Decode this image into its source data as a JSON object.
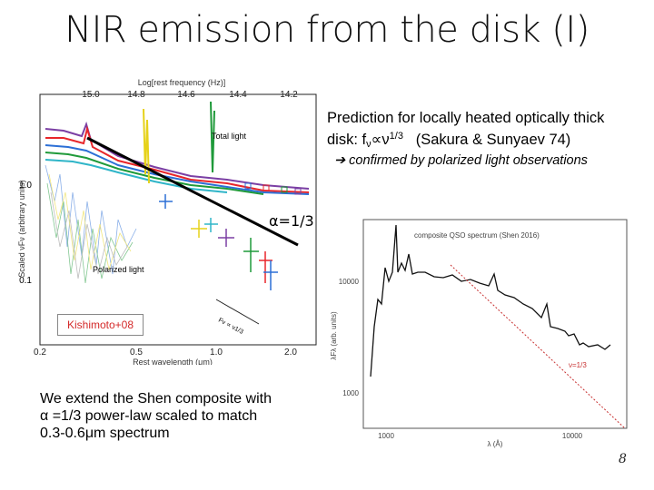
{
  "slide": {
    "title": "NIR emission from the disk (I)",
    "page_number": "8"
  },
  "prediction": {
    "line1": "Prediction for locally heated optically thick",
    "line2_prefix": "disk: f",
    "sub": "ν",
    "middle": "∝ν",
    "sup": "1/3",
    "suffix": "   (Sakura & Sunyaev 74)"
  },
  "confirmation": {
    "arrow": "➔",
    "text": " confirmed by polarized light observations"
  },
  "alpha_label": "α=1/3",
  "kishimoto_label": "Kishimoto+08",
  "extend_text": {
    "line1": "We extend the Shen composite with",
    "line2": "α =1/3 power-law scaled to match",
    "line3": "0.3-0.6μm spectrum"
  },
  "left_plot": {
    "top_axis_label": "Log[rest frequency (Hz)]",
    "top_ticks": [
      "15.0",
      "14.8",
      "14.6",
      "14.4",
      "14.2"
    ],
    "bottom_axis_label": "Rest wavelength (μm)",
    "bottom_ticks": [
      "0.2",
      "0.5",
      "1.0",
      "2.0"
    ],
    "y_axis_label": "Scaled νFν (arbitrary units)",
    "y_ticks": [
      "1.0",
      "0.1"
    ],
    "total_label": "Total light",
    "polarized_label": "Polarized light",
    "slope_label": "Fν ∝ ν1/3"
  },
  "right_plot": {
    "legend": "composite QSO spectrum (Shen 2016)",
    "y_label": "λFλ (arb. units)",
    "y_ticks": [
      "10000",
      "1000"
    ],
    "x_ticks": [
      "1000",
      "10000"
    ],
    "x_label": "λ (Å)",
    "slope_label": "ν=1/3"
  },
  "colors": {
    "red": "#e8262a",
    "blue": "#2c6fd6",
    "green": "#1f9a3a",
    "purple": "#7b3fa4",
    "yellow": "#e6d21a",
    "cyan": "#2fb5c8"
  }
}
